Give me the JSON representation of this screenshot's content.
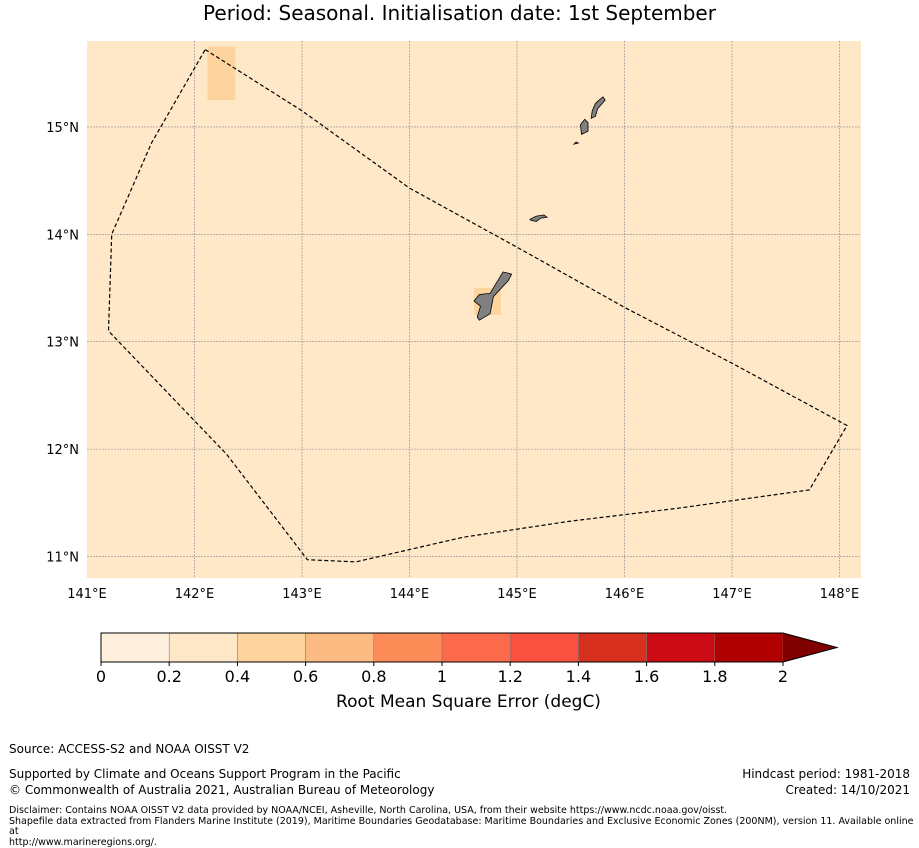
{
  "header": {
    "title": "Period: Seasonal. Initialisation date: 1st September"
  },
  "map": {
    "lon_range": [
      141.0,
      148.2
    ],
    "lat_range": [
      10.8,
      15.8
    ],
    "lon_ticks": [
      141,
      142,
      143,
      144,
      145,
      146,
      147,
      148
    ],
    "lat_ticks": [
      11,
      12,
      13,
      14,
      15
    ],
    "lon_labels": [
      "141°E",
      "142°E",
      "143°E",
      "144°E",
      "145°E",
      "146°E",
      "147°E",
      "148°E"
    ],
    "lat_labels": [
      "11°N",
      "12°N",
      "13°N",
      "14°N",
      "15°N"
    ],
    "background_color": "#fee8c8",
    "grid": true,
    "field_highlights": [
      {
        "lon": [
          142.12,
          142.38
        ],
        "lat": [
          15.25,
          15.75
        ],
        "rmse_class": "0.4-0.6",
        "color": "#fdd49e"
      },
      {
        "lon": [
          144.6,
          144.85
        ],
        "lat": [
          13.25,
          13.5
        ],
        "rmse_class": "0.4-0.6",
        "color": "#fdd49e"
      }
    ],
    "eez_boundary": [
      [
        142.1,
        15.72
      ],
      [
        143.0,
        15.15
      ],
      [
        144.0,
        14.43
      ],
      [
        145.0,
        13.88
      ],
      [
        145.5,
        13.6
      ],
      [
        146.0,
        13.32
      ],
      [
        147.0,
        12.8
      ],
      [
        148.07,
        12.22
      ],
      [
        147.72,
        11.62
      ],
      [
        146.5,
        11.45
      ],
      [
        145.5,
        11.33
      ],
      [
        144.5,
        11.18
      ],
      [
        143.5,
        10.95
      ],
      [
        143.05,
        10.97
      ],
      [
        142.3,
        11.95
      ],
      [
        141.2,
        13.1
      ],
      [
        141.23,
        14.0
      ],
      [
        141.6,
        14.85
      ],
      [
        142.1,
        15.72
      ]
    ],
    "islands": [
      {
        "name_hidden": "guam",
        "coords": [
          [
            144.65,
            13.2
          ],
          [
            144.75,
            13.26
          ],
          [
            144.78,
            13.42
          ],
          [
            144.92,
            13.57
          ],
          [
            144.95,
            13.63
          ],
          [
            144.87,
            13.65
          ],
          [
            144.75,
            13.45
          ],
          [
            144.65,
            13.44
          ],
          [
            144.6,
            13.38
          ],
          [
            144.66,
            13.33
          ],
          [
            144.63,
            13.23
          ]
        ]
      },
      {
        "name_hidden": "rota",
        "coords": [
          [
            145.13,
            14.13
          ],
          [
            145.18,
            14.12
          ],
          [
            145.22,
            14.15
          ],
          [
            145.28,
            14.16
          ],
          [
            145.25,
            14.18
          ],
          [
            145.18,
            14.17
          ],
          [
            145.12,
            14.14
          ]
        ]
      },
      {
        "name_hidden": "tinian",
        "coords": [
          [
            145.6,
            14.93
          ],
          [
            145.66,
            14.96
          ],
          [
            145.66,
            15.04
          ],
          [
            145.63,
            15.07
          ],
          [
            145.59,
            15.02
          ]
        ]
      },
      {
        "name_hidden": "saipan",
        "coords": [
          [
            145.69,
            15.08
          ],
          [
            145.73,
            15.1
          ],
          [
            145.75,
            15.17
          ],
          [
            145.82,
            15.25
          ],
          [
            145.8,
            15.28
          ],
          [
            145.73,
            15.22
          ],
          [
            145.7,
            15.15
          ]
        ]
      },
      {
        "name_hidden": "aguijan",
        "coords": [
          [
            145.53,
            14.84
          ],
          [
            145.57,
            14.85
          ],
          [
            145.55,
            14.86
          ]
        ]
      }
    ]
  },
  "chart_data": {
    "type": "heatmap",
    "title": "Period: Seasonal. Initialisation date: 1st September",
    "colorbar": {
      "label": "Root Mean Square Error (degC)",
      "bounds": [
        0,
        0.2,
        0.4,
        0.6,
        0.8,
        1.0,
        1.2,
        1.4,
        1.6,
        1.8,
        2.0
      ],
      "tick_labels": [
        "0",
        "0.2",
        "0.4",
        "0.6",
        "0.8",
        "1",
        "1.2",
        "1.4",
        "1.6",
        "1.8",
        "2"
      ],
      "colors": [
        "#fff0de",
        "#fee8c8",
        "#fdd49e",
        "#fdbb84",
        "#fc8d59",
        "#fb6a4a",
        "#fa5040",
        "#d7301f",
        "#cc0a14",
        "#b00000"
      ],
      "extend_color": "#7f0000",
      "extend": "max"
    },
    "field_summary": "Most of the region in 0.2-0.4 class; small cells in 0.4-0.6 class"
  },
  "footer": {
    "source": "Source: ACCESS-S2 and NOAA OISST V2",
    "supported_by": "Supported by Climate and Oceans Support Program in the Pacific",
    "copyright": "© Commonwealth of Australia 2021, Australian Bureau of Meteorology",
    "hindcast_period": "Hindcast period: 1981-2018",
    "created": "Created: 14/10/2021",
    "disclaimer_1": "Disclaimer: Contains NOAA OISST V2 data provided by NOAA/NCEI, Asheville, North Carolina, USA, from their website https://www.ncdc.noaa.gov/oisst.",
    "disclaimer_2": "Shapefile data extracted from Flanders Marine Institute (2019), Maritime Boundaries Geodatabase: Maritime Boundaries and Exclusive Economic Zones (200NM), version 11. Available online at",
    "disclaimer_3": "http://www.marineregions.org/."
  }
}
